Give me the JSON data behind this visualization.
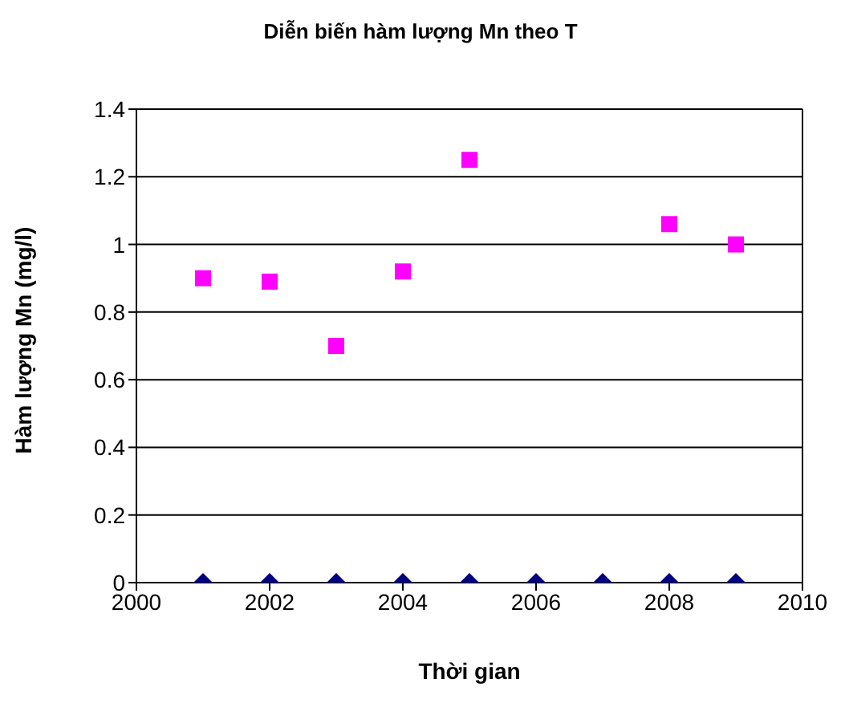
{
  "chart_data": {
    "type": "scatter",
    "title": "Diễn biến hàm lượng Mn theo T",
    "xlabel": "Thời gian",
    "ylabel": "Hàm lượng Mn (mg/l)",
    "x": [
      2001,
      2002,
      2003,
      2004,
      2005,
      2006,
      2007,
      2008,
      2009
    ],
    "series": [
      {
        "color": "#ff00ff",
        "marker": "square",
        "x": [
          2001,
          2002,
          2003,
          2004,
          2005,
          2008,
          2009
        ],
        "values": [
          0.9,
          0.89,
          0.7,
          0.92,
          1.25,
          1.06,
          1.0
        ]
      },
      {
        "color": "#000080",
        "marker": "diamond",
        "values": [
          0,
          0,
          0,
          0,
          0,
          0,
          0,
          0,
          0
        ]
      }
    ],
    "xlim": [
      2000,
      2010
    ],
    "xticks": [
      2000,
      2002,
      2004,
      2006,
      2008,
      2010
    ],
    "ylim": [
      0,
      1.4
    ],
    "yticks": [
      0,
      0.2,
      0.4,
      0.6,
      0.8,
      1,
      1.2,
      1.4
    ],
    "grid": "y",
    "legend": false
  }
}
